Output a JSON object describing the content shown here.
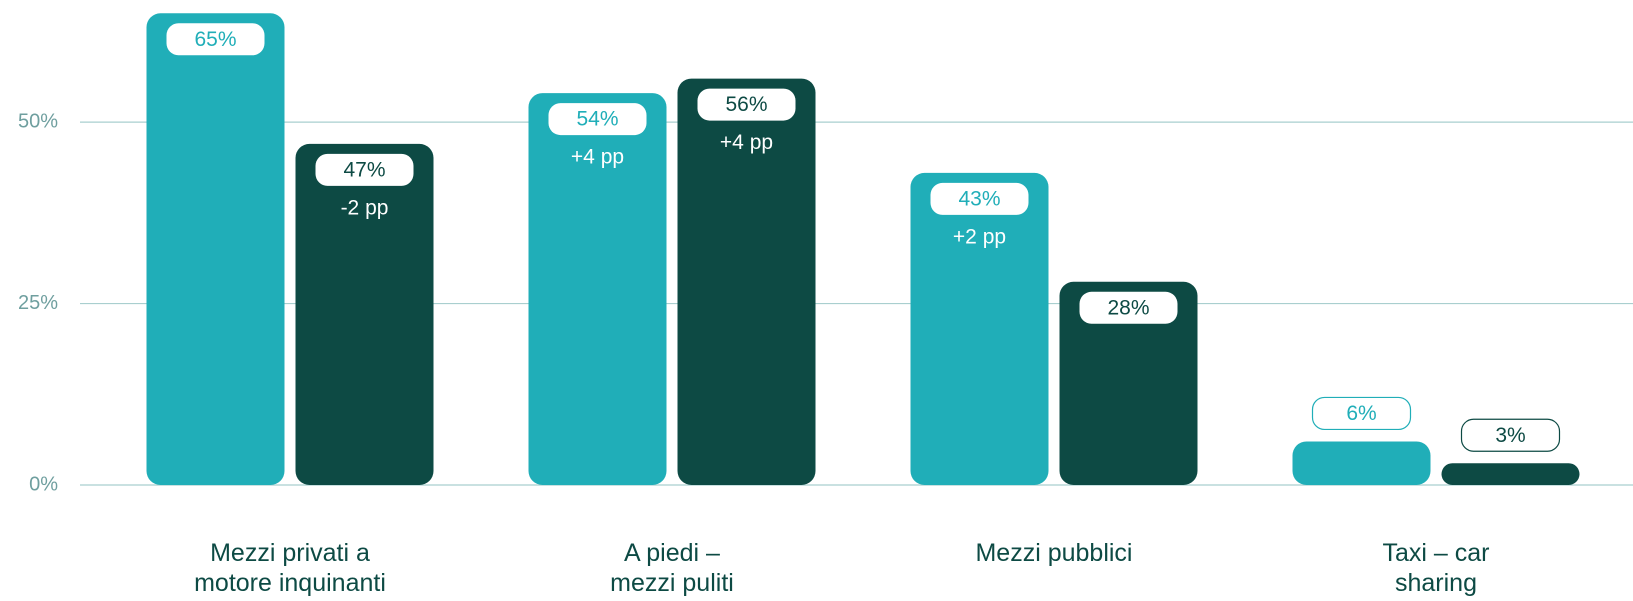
{
  "chart_data": {
    "type": "bar",
    "categories": [
      "Mezzi privati a motore inquinanti",
      "A piedi – mezzi puliti",
      "Mezzi pubblici",
      "Taxi – car sharing"
    ],
    "series": [
      {
        "color": "#20aeb8",
        "values": [
          65,
          54,
          43,
          6
        ],
        "value_labels": [
          "65%",
          "54%",
          "43%",
          "6%"
        ],
        "annotations": [
          null,
          "+4 pp",
          "+2 pp",
          null
        ]
      },
      {
        "color": "#0d4a44",
        "values": [
          47,
          56,
          28,
          3
        ],
        "value_labels": [
          "47%",
          "56%",
          "28%",
          "3%"
        ],
        "annotations": [
          "-2 pp",
          "+4 pp",
          null,
          null
        ]
      }
    ],
    "ylim": [
      0,
      66
    ],
    "yticks": [
      {
        "value": 0,
        "label": "0%"
      },
      {
        "value": 25,
        "label": "25%"
      },
      {
        "value": 50,
        "label": "50%"
      }
    ],
    "grid": true
  }
}
